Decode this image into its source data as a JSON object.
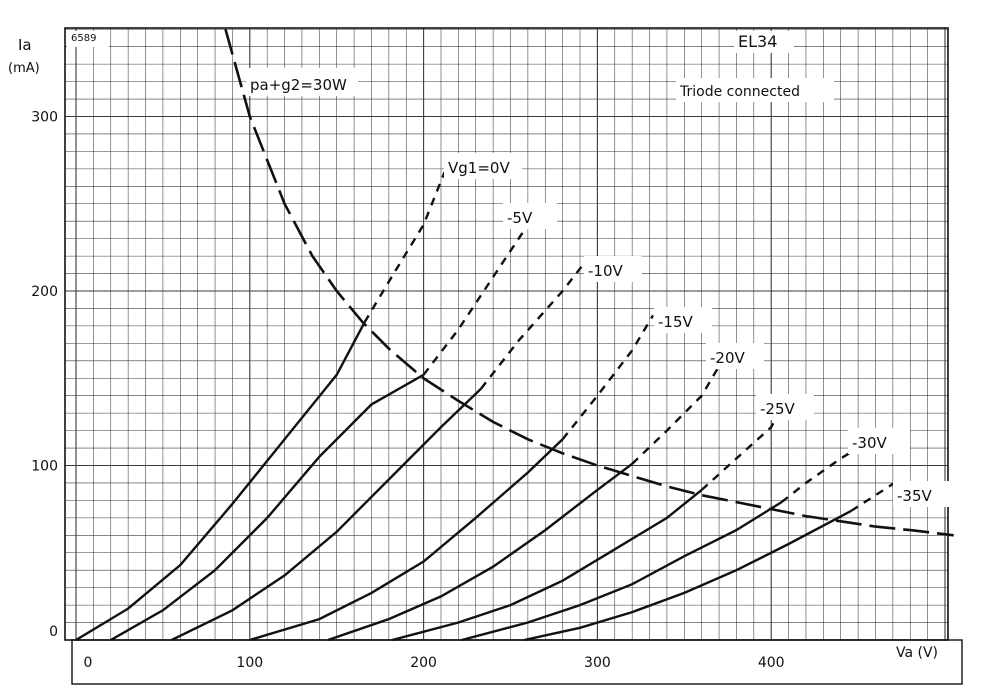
{
  "chart_data": {
    "type": "line",
    "code": "6589",
    "tube": "EL34",
    "subtitle": "Triode connected",
    "y_axis": {
      "symbol": "Ia",
      "unit": "(mA)",
      "ticks": [
        0,
        100,
        200,
        300
      ],
      "range": [
        0,
        350
      ]
    },
    "x_axis": {
      "label": "Va (V)",
      "ticks": [
        0,
        100,
        200,
        300,
        400
      ],
      "range": [
        0,
        505
      ]
    },
    "grid": true,
    "power_curve": {
      "label": "pa+g2=30W",
      "points": [
        [
          86,
          350
        ],
        [
          100,
          300
        ],
        [
          120,
          250
        ],
        [
          136,
          220
        ],
        [
          150,
          200
        ],
        [
          165,
          182
        ],
        [
          180,
          167
        ],
        [
          200,
          150
        ],
        [
          220,
          137
        ],
        [
          240,
          125
        ],
        [
          260,
          115
        ],
        [
          280,
          107
        ],
        [
          300,
          100
        ],
        [
          320,
          94
        ],
        [
          340,
          88
        ],
        [
          360,
          83
        ],
        [
          380,
          79
        ],
        [
          400,
          75
        ],
        [
          420,
          71
        ],
        [
          440,
          68
        ],
        [
          460,
          65
        ],
        [
          480,
          63
        ],
        [
          505,
          60
        ]
      ]
    },
    "series": [
      {
        "name": "Vg1=0V",
        "points": [
          [
            0,
            0
          ],
          [
            30,
            18
          ],
          [
            60,
            43
          ],
          [
            90,
            78
          ],
          [
            120,
            115
          ],
          [
            150,
            152
          ],
          [
            166,
            182
          ]
        ],
        "dashed": [
          [
            166,
            182
          ],
          [
            184,
            212
          ],
          [
            200,
            238
          ],
          [
            212,
            268
          ]
        ]
      },
      {
        "name": "-5V",
        "points": [
          [
            20,
            0
          ],
          [
            50,
            17
          ],
          [
            80,
            40
          ],
          [
            110,
            70
          ],
          [
            140,
            105
          ],
          [
            170,
            135
          ],
          [
            200,
            152
          ]
        ],
        "dashed": [
          [
            200,
            152
          ],
          [
            220,
            178
          ],
          [
            240,
            208
          ],
          [
            260,
            238
          ]
        ]
      },
      {
        "name": "-10V",
        "points": [
          [
            55,
            0
          ],
          [
            90,
            17
          ],
          [
            120,
            37
          ],
          [
            150,
            62
          ],
          [
            180,
            92
          ],
          [
            210,
            122
          ],
          [
            233,
            144
          ]
        ],
        "dashed": [
          [
            233,
            144
          ],
          [
            255,
            172
          ],
          [
            280,
            200
          ],
          [
            294,
            218
          ]
        ]
      },
      {
        "name": "-15V",
        "points": [
          [
            100,
            0
          ],
          [
            140,
            12
          ],
          [
            170,
            27
          ],
          [
            200,
            45
          ],
          [
            230,
            70
          ],
          [
            260,
            96
          ],
          [
            280,
            115
          ]
        ],
        "dashed": [
          [
            280,
            115
          ],
          [
            300,
            140
          ],
          [
            320,
            166
          ],
          [
            332,
            186
          ]
        ]
      },
      {
        "name": "-20V",
        "points": [
          [
            145,
            0
          ],
          [
            180,
            12
          ],
          [
            210,
            25
          ],
          [
            240,
            42
          ],
          [
            270,
            63
          ],
          [
            300,
            86
          ],
          [
            320,
            101
          ]
        ],
        "dashed": [
          [
            320,
            101
          ],
          [
            340,
            120
          ],
          [
            360,
            140
          ],
          [
            370,
            157
          ]
        ]
      },
      {
        "name": "-25V",
        "points": [
          [
            182,
            0
          ],
          [
            220,
            10
          ],
          [
            250,
            20
          ],
          [
            280,
            34
          ],
          [
            310,
            52
          ],
          [
            340,
            70
          ],
          [
            360,
            86
          ]
        ],
        "dashed": [
          [
            360,
            86
          ],
          [
            380,
            104
          ],
          [
            400,
            122
          ],
          [
            408,
            137
          ]
        ]
      },
      {
        "name": "-30V",
        "points": [
          [
            222,
            0
          ],
          [
            260,
            10
          ],
          [
            290,
            20
          ],
          [
            320,
            32
          ],
          [
            350,
            48
          ],
          [
            380,
            63
          ],
          [
            406,
            79
          ]
        ],
        "dashed": [
          [
            406,
            79
          ],
          [
            420,
            90
          ],
          [
            440,
            104
          ],
          [
            450,
            110
          ]
        ]
      },
      {
        "name": "-35V",
        "points": [
          [
            258,
            0
          ],
          [
            290,
            7
          ],
          [
            320,
            16
          ],
          [
            350,
            27
          ],
          [
            380,
            40
          ],
          [
            410,
            55
          ],
          [
            446,
            74
          ]
        ],
        "dashed": [
          [
            446,
            74
          ],
          [
            460,
            83
          ],
          [
            474,
            92
          ]
        ]
      }
    ]
  }
}
